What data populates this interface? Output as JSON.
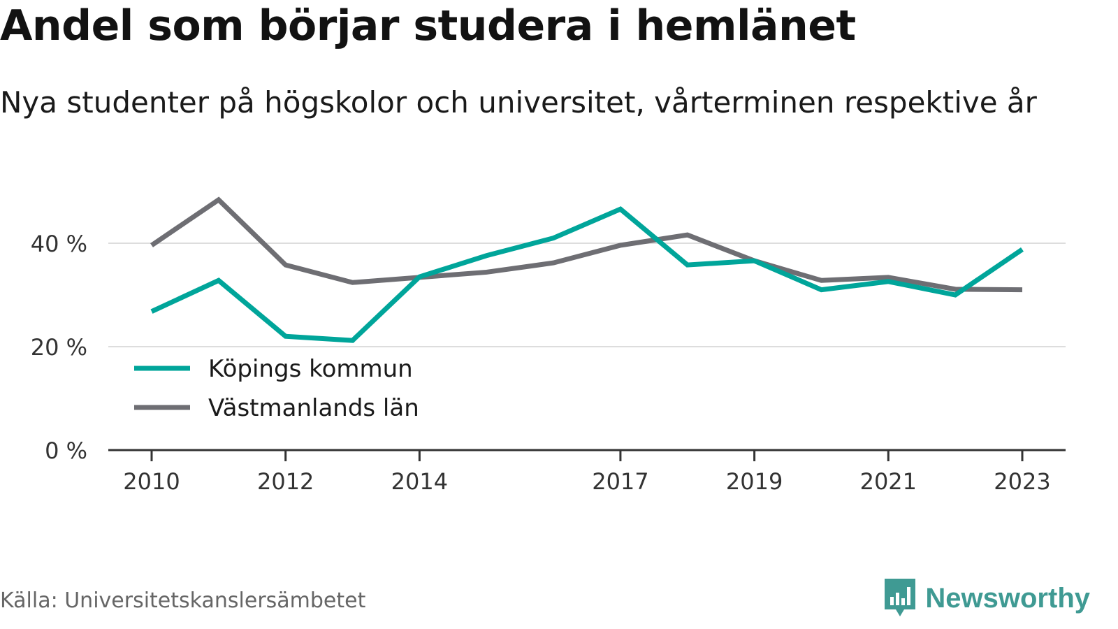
{
  "title": "Andel som börjar studera i hemlänet",
  "subtitle": "Nya studenter på högskolor och universitet, vårterminen respektive år",
  "source": "Källa: Universitetskanslersämbetet",
  "brand": "Newsworthy",
  "colors": {
    "kopings": "#00a59a",
    "vastmanland": "#6e6e73",
    "grid": "#dddddd",
    "axis": "#333333",
    "brand": "#3f9a93"
  },
  "chart_data": {
    "type": "line",
    "x": [
      2010,
      2011,
      2012,
      2013,
      2014,
      2015,
      2016,
      2017,
      2018,
      2019,
      2020,
      2021,
      2022,
      2023
    ],
    "series": [
      {
        "name": "Köpings kommun",
        "values": [
          26.8,
          32.8,
          22.0,
          21.2,
          33.5,
          37.6,
          41.0,
          46.6,
          35.8,
          36.6,
          31.0,
          32.6,
          30.0,
          38.8
        ]
      },
      {
        "name": "Västmanlands län",
        "values": [
          39.6,
          48.4,
          35.8,
          32.4,
          33.4,
          34.4,
          36.2,
          39.6,
          41.6,
          36.6,
          32.8,
          33.4,
          31.1,
          31.0
        ]
      }
    ],
    "xticks": [
      "2010",
      "2012",
      "2014",
      "2017",
      "2019",
      "2021",
      "2023"
    ],
    "yticks": [
      "0 %",
      "20 %",
      "40 %"
    ],
    "ylim": [
      0,
      50
    ],
    "grid": true,
    "legend_position": "bottom-left"
  }
}
